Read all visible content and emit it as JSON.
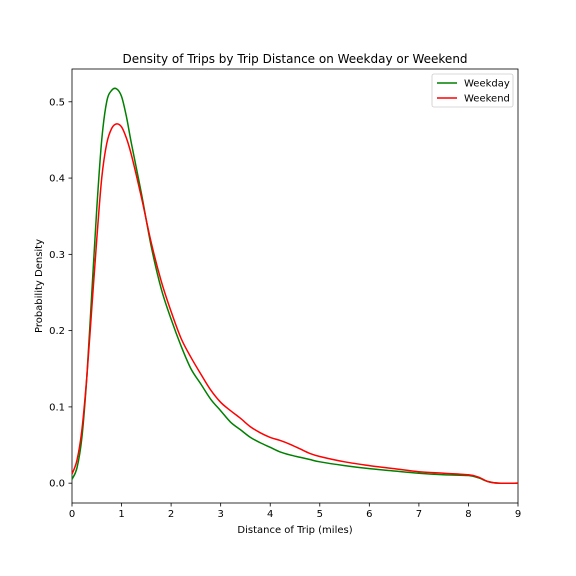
{
  "chart_data": {
    "type": "line",
    "title": "Density of Trips by Trip Distance on Weekday or Weekend",
    "xlabel": "Distance of Trip (miles)",
    "ylabel": "Probability Density",
    "xlim": [
      0,
      9
    ],
    "ylim": [
      -0.026,
      0.543
    ],
    "xticks": [
      "0",
      "1",
      "2",
      "3",
      "4",
      "5",
      "6",
      "7",
      "8",
      "9"
    ],
    "yticks": [
      "0.0",
      "0.1",
      "0.2",
      "0.3",
      "0.4",
      "0.5"
    ],
    "grid": false,
    "legend_position": "top-right",
    "series": [
      {
        "name": "Weekday",
        "color": "#008000",
        "x": [
          0,
          0.1,
          0.2,
          0.3,
          0.4,
          0.5,
          0.6,
          0.7,
          0.8,
          0.9,
          1.0,
          1.1,
          1.2,
          1.4,
          1.6,
          1.8,
          2.0,
          2.2,
          2.4,
          2.6,
          2.8,
          3.0,
          3.2,
          3.4,
          3.6,
          3.8,
          4.0,
          4.2,
          4.4,
          4.6,
          4.8,
          5.0,
          5.5,
          6.0,
          6.5,
          7.0,
          7.5,
          8.0,
          8.2,
          8.4,
          8.6,
          9.0
        ],
        "y": [
          0.005,
          0.02,
          0.06,
          0.14,
          0.25,
          0.36,
          0.45,
          0.5,
          0.515,
          0.517,
          0.507,
          0.48,
          0.445,
          0.38,
          0.31,
          0.255,
          0.215,
          0.18,
          0.15,
          0.13,
          0.11,
          0.095,
          0.08,
          0.07,
          0.06,
          0.053,
          0.047,
          0.041,
          0.037,
          0.034,
          0.031,
          0.028,
          0.023,
          0.019,
          0.016,
          0.013,
          0.011,
          0.01,
          0.007,
          0.002,
          0.0,
          0.0
        ]
      },
      {
        "name": "Weekend",
        "color": "#ff0000",
        "x": [
          0,
          0.1,
          0.2,
          0.3,
          0.4,
          0.5,
          0.6,
          0.7,
          0.8,
          0.9,
          1.0,
          1.1,
          1.2,
          1.4,
          1.6,
          1.8,
          2.0,
          2.2,
          2.4,
          2.6,
          2.8,
          3.0,
          3.2,
          3.4,
          3.6,
          3.8,
          4.0,
          4.2,
          4.4,
          4.6,
          4.8,
          5.0,
          5.5,
          6.0,
          6.5,
          7.0,
          7.5,
          8.0,
          8.2,
          8.4,
          8.6,
          9.0
        ],
        "y": [
          0.012,
          0.03,
          0.07,
          0.14,
          0.23,
          0.32,
          0.4,
          0.445,
          0.465,
          0.471,
          0.467,
          0.452,
          0.43,
          0.375,
          0.315,
          0.265,
          0.225,
          0.19,
          0.165,
          0.143,
          0.122,
          0.106,
          0.095,
          0.085,
          0.074,
          0.066,
          0.06,
          0.056,
          0.051,
          0.045,
          0.039,
          0.035,
          0.028,
          0.023,
          0.019,
          0.015,
          0.013,
          0.011,
          0.008,
          0.002,
          0.0,
          0.0
        ]
      }
    ]
  }
}
